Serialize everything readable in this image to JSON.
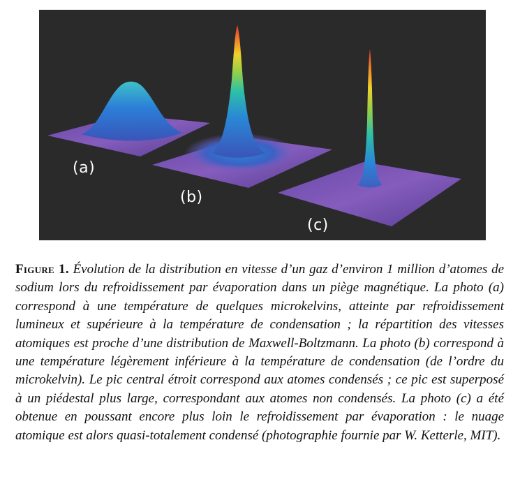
{
  "figure": {
    "panels": [
      {
        "label": "(a)"
      },
      {
        "label": "(b)"
      },
      {
        "label": "(c)"
      }
    ],
    "colors": {
      "background": "#2a2a2a",
      "base": "#8a5fc4",
      "low": "#2f6fd0",
      "mid": "#22b3b3",
      "high": "#e8c22a",
      "peak": "#e0462a"
    }
  },
  "caption": {
    "label": "Figure 1.",
    "text": "Évolution de la distribution en vitesse d’un gaz d’environ 1 million d’atomes de sodium lors du refroidissement par évaporation dans un piège magnétique. La photo (a) correspond à une température de quelques microkelvins, atteinte par refroidissement lumineux et supérieure à la température de condensation ; la répartition des vitesses atomiques est proche d’une distribution de Maxwell-Boltzmann. La photo (b) correspond à une température légèrement inférieure à la température de condensation (de l’ordre du microkelvin). Le pic central étroit correspond aux atomes condensés ; ce pic est superposé à un piédestal plus large, correspondant aux atomes non condensés. La photo (c) a été obtenue en poussant encore plus loin le refroidissement par évaporation : le nuage atomique est alors quasi-totalement condensé (photographie fournie par W. Ketterle, MIT)."
  }
}
